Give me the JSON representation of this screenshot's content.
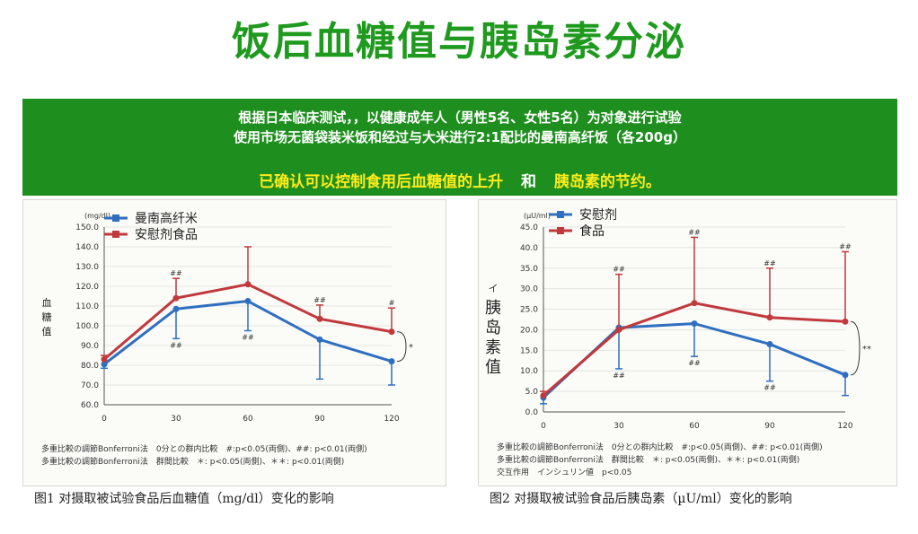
{
  "page": {
    "title": "饭后血糖值与胰岛素分泌",
    "banner": {
      "line1": "根据日本临床测试，，以健康成年人（男性5名、女性5名）为对象进行试验",
      "line2": "使用市场无菌袋装米饭和经过与大米进行2:1配比的曼南高纤饭（各200g）",
      "highlight_part1": "已确认可以控制食用后血糖值的上升",
      "highlight_conj": "和",
      "highlight_part2": "胰岛素的节约。"
    },
    "captions": {
      "chart1": "图1  对摄取被试验食品后血糖值（mg/dl）变化的影响",
      "chart2": "图2  对摄取被试验食品后胰岛素（µU/ml）变化的影响"
    }
  },
  "colors": {
    "title_green": "#1f9a1f",
    "banner_green": "#1e8f1e",
    "highlight_yellow": "#ffec1a",
    "series_blue": "#2f6fc0",
    "series_red": "#c0393c"
  },
  "chart_data": [
    {
      "type": "line",
      "unit_label": "(mg/dl)",
      "ylabel": "血糖值",
      "x": [
        0,
        30,
        60,
        90,
        120
      ],
      "ylim": [
        60,
        150
      ],
      "yticks": [
        "60.0",
        "70.0",
        "80.0",
        "90.0",
        "100.0",
        "110.0",
        "120.0",
        "130.0",
        "140.0",
        "150.0"
      ],
      "series": [
        {
          "name": "曼南高纤米",
          "values": [
            80.5,
            108.5,
            112.5,
            93,
            82
          ],
          "errors": [
            2,
            15,
            15,
            20,
            12
          ]
        },
        {
          "name": "安慰剂食品",
          "values": [
            83,
            114,
            121,
            103.5,
            97
          ],
          "errors": [
            2,
            10,
            19,
            7,
            12
          ]
        }
      ],
      "annotations": {
        "red_30": "##",
        "red_90": "##",
        "red_120": "#",
        "blue_30": "##",
        "blue_60": "##",
        "bracket": "*"
      },
      "notes": [
        "多重比較の調節Bonferroni法　0分との群内比較　#:p<0.05(両側)、##: p<0.01(両側)",
        "多重比較の調節Bonferroni法　群間比較　＊: p<0.05(両側)、＊＊: p<0.01(両側)"
      ]
    },
    {
      "type": "line",
      "unit_label": "(μU/ml)",
      "ylabel": "胰岛素值",
      "axis_mark": "イ",
      "x": [
        0,
        30,
        60,
        90,
        120
      ],
      "ylim": [
        0,
        45
      ],
      "yticks": [
        "0.0",
        "5.0",
        "10.0",
        "15.0",
        "20.0",
        "25.0",
        "30.0",
        "35.0",
        "40.0",
        "45.0"
      ],
      "series": [
        {
          "name": "安慰剂",
          "values": [
            3.5,
            20.5,
            21.5,
            16.5,
            9
          ],
          "errors": [
            1.5,
            10,
            8,
            9,
            5
          ]
        },
        {
          "name": "食品",
          "values": [
            4,
            20,
            26.5,
            23,
            22
          ],
          "errors": [
            1,
            13.5,
            16,
            12,
            17
          ]
        }
      ],
      "annotations": {
        "red_30": "##",
        "red_60": "##",
        "red_90": "##",
        "red_120": "##",
        "blue_30": "##",
        "blue_60": "##",
        "blue_90": "##",
        "bracket": "**"
      },
      "notes": [
        "多重比較の調節Bonferroni法　0分との群内比較　#:p<0.05(両側)、##: p<0.01(両側)",
        "多重比較の調節Bonferroni法　群間比較　＊: p<0.05(両側)、＊＊: p<0.01(両側)",
        "交互作用　インシュリン値　p<0.05"
      ]
    }
  ]
}
